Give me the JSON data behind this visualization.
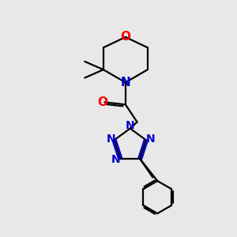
{
  "bg_color": "#e8e8e8",
  "bond_color": "#000000",
  "N_color": "#0000cc",
  "O_color": "#ff0000",
  "line_width": 1.6,
  "font_size_atom": 10,
  "fig_size": [
    3.0,
    3.0
  ],
  "dpi": 100,
  "xlim": [
    0,
    10
  ],
  "ylim": [
    0,
    10
  ]
}
